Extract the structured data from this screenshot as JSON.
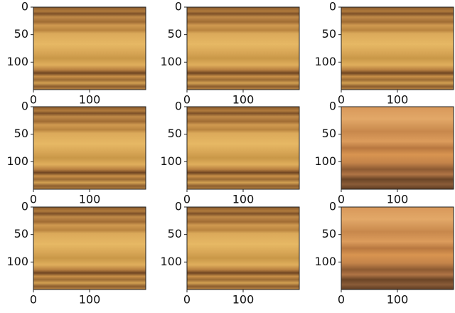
{
  "chart_data": [
    {
      "type": "image",
      "xlim": [
        0,
        200
      ],
      "ylim": [
        150,
        0
      ],
      "xticks": [
        0,
        100
      ],
      "yticks": [
        0,
        50,
        100
      ]
    },
    {
      "type": "image",
      "xlim": [
        0,
        200
      ],
      "ylim": [
        150,
        0
      ],
      "xticks": [
        0,
        100
      ],
      "yticks": [
        0,
        50,
        100
      ]
    },
    {
      "type": "image",
      "xlim": [
        0,
        200
      ],
      "ylim": [
        150,
        0
      ],
      "xticks": [
        0,
        100
      ],
      "yticks": [
        0,
        50,
        100
      ]
    },
    {
      "type": "image",
      "xlim": [
        0,
        200
      ],
      "ylim": [
        150,
        0
      ],
      "xticks": [
        0,
        100
      ],
      "yticks": [
        0,
        50,
        100
      ]
    },
    {
      "type": "image",
      "xlim": [
        0,
        200
      ],
      "ylim": [
        150,
        0
      ],
      "xticks": [
        0,
        100
      ],
      "yticks": [
        0,
        50,
        100
      ]
    },
    {
      "type": "image",
      "xlim": [
        0,
        200
      ],
      "ylim": [
        150,
        0
      ],
      "xticks": [
        0,
        100
      ],
      "yticks": [
        0,
        50,
        100
      ]
    },
    {
      "type": "image",
      "xlim": [
        0,
        200
      ],
      "ylim": [
        150,
        0
      ],
      "xticks": [
        0,
        100
      ],
      "yticks": [
        0,
        50,
        100
      ]
    },
    {
      "type": "image",
      "xlim": [
        0,
        200
      ],
      "ylim": [
        150,
        0
      ],
      "xticks": [
        0,
        100
      ],
      "yticks": [
        0,
        50,
        100
      ]
    },
    {
      "type": "image",
      "xlim": [
        0,
        200
      ],
      "ylim": [
        150,
        0
      ],
      "xticks": [
        0,
        100
      ],
      "yticks": [
        0,
        50,
        100
      ]
    }
  ]
}
